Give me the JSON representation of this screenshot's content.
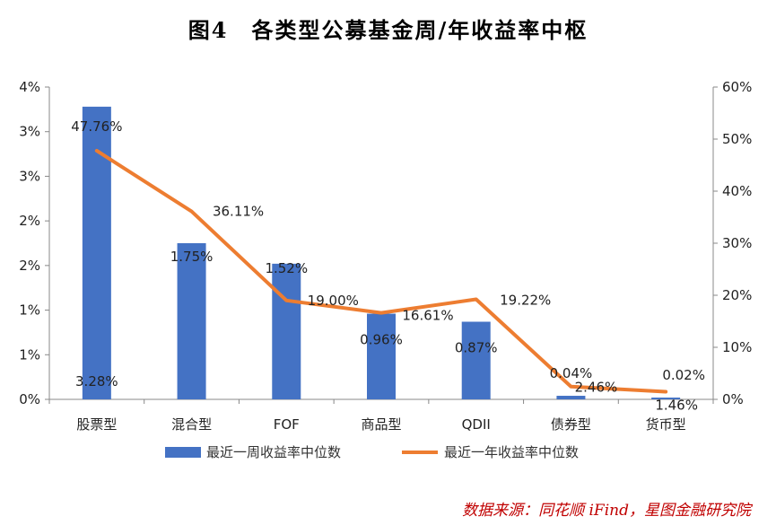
{
  "title": "图4　各类型公募基金周/年收益率中枢",
  "source": "数据来源：同花顺 iFind，星图金融研究院",
  "chart_data": {
    "type": "bar+line",
    "categories": [
      "股票型",
      "混合型",
      "FOF",
      "商品型",
      "QDII",
      "债券型",
      "货币型"
    ],
    "series": [
      {
        "name": "最近一周收益率中位数",
        "type": "bar",
        "axis": "left",
        "values": [
          3.28,
          1.75,
          1.52,
          0.96,
          0.87,
          0.04,
          0.02
        ],
        "labels": [
          "3.28%",
          "1.75%",
          "1.52%",
          "0.96%",
          "0.87%",
          "0.04%",
          "0.02%"
        ],
        "color": "#4472c4"
      },
      {
        "name": "最近一年收益率中位数",
        "type": "line",
        "axis": "right",
        "values": [
          47.76,
          36.11,
          19.0,
          16.61,
          19.22,
          2.46,
          1.46
        ],
        "labels": [
          "47.76%",
          "36.11%",
          "19.00%",
          "16.61%",
          "19.22%",
          "2.46%",
          "1.46%"
        ],
        "color": "#ed7d31"
      }
    ],
    "y_left": {
      "ylim": [
        0,
        3.5
      ],
      "tick_values": [
        0,
        0.5,
        1,
        1.5,
        2,
        2.5,
        3,
        3.5
      ],
      "tick_labels": [
        "0%",
        "1%",
        "1%",
        "2%",
        "2%",
        "3%",
        "3%",
        "4%"
      ]
    },
    "y_right": {
      "ylim": [
        0,
        60
      ],
      "tick_values": [
        0,
        10,
        20,
        30,
        40,
        50,
        60
      ],
      "tick_labels": [
        "0%",
        "10%",
        "20%",
        "30%",
        "40%",
        "50%",
        "60%"
      ]
    },
    "grid": false,
    "legend_position": "bottom"
  }
}
